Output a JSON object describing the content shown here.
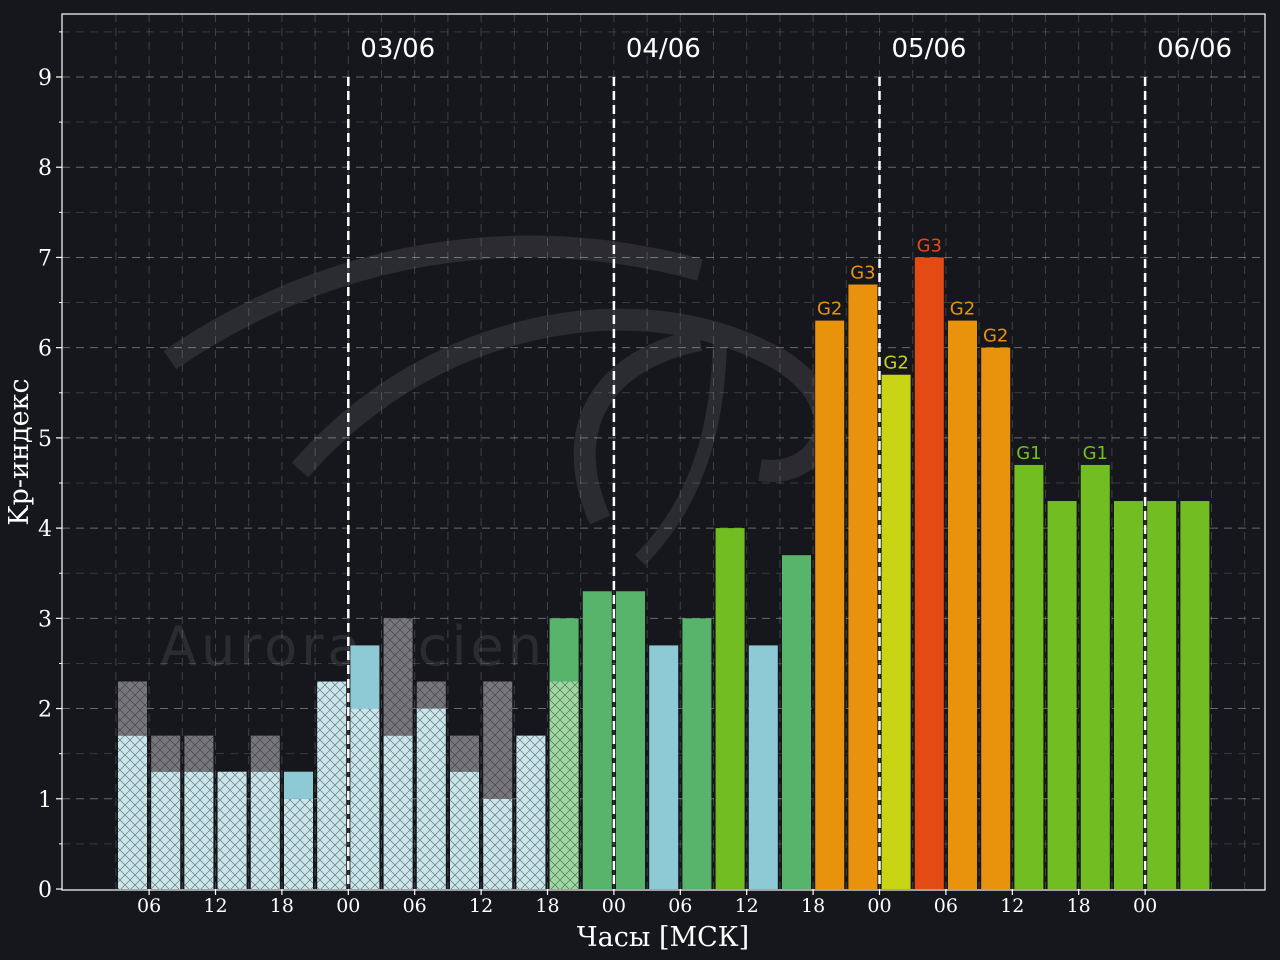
{
  "chart_data": {
    "type": "bar",
    "xlabel": "Часы [МСК]",
    "ylabel": "Kp-индекс",
    "ylim": [
      0,
      9.8
    ],
    "yticks": [
      0,
      1,
      2,
      3,
      4,
      5,
      6,
      7,
      8,
      9
    ],
    "grid": true,
    "watermark": "Aurora science",
    "x_tick_labels": [
      "06",
      "12",
      "18",
      "00",
      "06",
      "12",
      "18",
      "00",
      "06",
      "12",
      "18",
      "00",
      "06",
      "12",
      "18",
      "00"
    ],
    "date_labels": [
      "03/06",
      "04/06",
      "05/06",
      "06/06"
    ],
    "colors": {
      "background": "#16171d",
      "quiet_observed": "#8ecad6",
      "quiet_hatched": "#c9e6ea",
      "range_grey": "#76767b",
      "unsettled": "#58b46a",
      "g1": "#72bd22",
      "g2_minor": "#c8d414",
      "g2": "#e8930b",
      "g3": "#e44b14"
    },
    "bars": [
      {
        "value": 2.3,
        "lower": 1.7,
        "style": "hatched-range"
      },
      {
        "value": 1.7,
        "lower": 1.3,
        "style": "hatched-range"
      },
      {
        "value": 1.7,
        "lower": 1.3,
        "style": "hatched-range"
      },
      {
        "value": 1.3,
        "lower": 1.3,
        "style": "hatched"
      },
      {
        "value": 1.7,
        "lower": 1.3,
        "style": "hatched-range"
      },
      {
        "value": 1.3,
        "lower": 1.0,
        "style": "hatched-observed"
      },
      {
        "value": 2.3,
        "lower": 2.3,
        "style": "hatched"
      },
      {
        "value": 2.7,
        "lower": 2.0,
        "style": "hatched-observed"
      },
      {
        "value": 3.0,
        "lower": 1.7,
        "style": "hatched-range"
      },
      {
        "value": 2.3,
        "lower": 2.0,
        "style": "hatched-range"
      },
      {
        "value": 1.7,
        "lower": 1.3,
        "style": "hatched-range"
      },
      {
        "value": 2.3,
        "lower": 1.0,
        "style": "hatched-range"
      },
      {
        "value": 1.7,
        "lower": 1.7,
        "style": "hatched"
      },
      {
        "value": 3.0,
        "lower": 2.3,
        "style": "hatched-green"
      },
      {
        "value": 3.3,
        "style": "solid",
        "color": "#58b46a"
      },
      {
        "value": 3.3,
        "style": "solid",
        "color": "#58b46a"
      },
      {
        "value": 2.7,
        "style": "solid",
        "color": "#8ecad6"
      },
      {
        "value": 3.0,
        "style": "solid",
        "color": "#58b46a"
      },
      {
        "value": 4.0,
        "style": "solid",
        "color": "#72bd22"
      },
      {
        "value": 2.7,
        "style": "solid",
        "color": "#8ecad6"
      },
      {
        "value": 3.7,
        "style": "solid",
        "color": "#58b46a"
      },
      {
        "value": 6.3,
        "style": "solid",
        "color": "#e8930b",
        "label": "G2",
        "label_color": "#e8930b"
      },
      {
        "value": 6.7,
        "style": "solid",
        "color": "#e8930b",
        "label": "G3",
        "label_color": "#e8930b"
      },
      {
        "value": 5.7,
        "style": "solid",
        "color": "#c8d414",
        "label": "G2",
        "label_color": "#c8d414"
      },
      {
        "value": 7.0,
        "style": "solid",
        "color": "#e44b14",
        "label": "G3",
        "label_color": "#e44b14"
      },
      {
        "value": 6.3,
        "style": "solid",
        "color": "#e8930b",
        "label": "G2",
        "label_color": "#e8930b"
      },
      {
        "value": 6.0,
        "style": "solid",
        "color": "#e8930b",
        "label": "G2",
        "label_color": "#e8930b"
      },
      {
        "value": 4.7,
        "style": "solid",
        "color": "#72bd22",
        "label": "G1",
        "label_color": "#72bd22"
      },
      {
        "value": 4.3,
        "style": "solid",
        "color": "#72bd22"
      },
      {
        "value": 4.7,
        "style": "solid",
        "color": "#72bd22",
        "label": "G1",
        "label_color": "#72bd22"
      },
      {
        "value": 4.3,
        "style": "solid",
        "color": "#72bd22"
      },
      {
        "value": 4.3,
        "style": "solid",
        "color": "#72bd22"
      },
      {
        "value": 4.3,
        "style": "solid",
        "color": "#72bd22"
      }
    ]
  }
}
